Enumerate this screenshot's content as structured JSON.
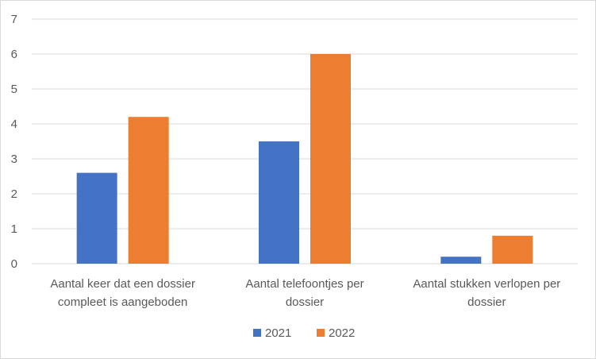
{
  "chart_data": {
    "type": "bar",
    "categories": [
      [
        "Aantal keer dat een dossier",
        "compleet is aangeboden"
      ],
      [
        "Aantal telefoontjes per",
        "dossier"
      ],
      [
        "Aantal stukken verlopen per",
        "dossier"
      ]
    ],
    "series": [
      {
        "name": "2021",
        "color": "#4472C4",
        "values": [
          2.6,
          3.5,
          0.2
        ]
      },
      {
        "name": "2022",
        "color": "#ED7D31",
        "values": [
          4.2,
          6.0,
          0.8
        ]
      }
    ],
    "yticks": [
      "0",
      "1",
      "2",
      "3",
      "4",
      "5",
      "6",
      "7"
    ],
    "ylim": [
      0,
      7
    ],
    "grid": true,
    "legend": "bottom"
  }
}
